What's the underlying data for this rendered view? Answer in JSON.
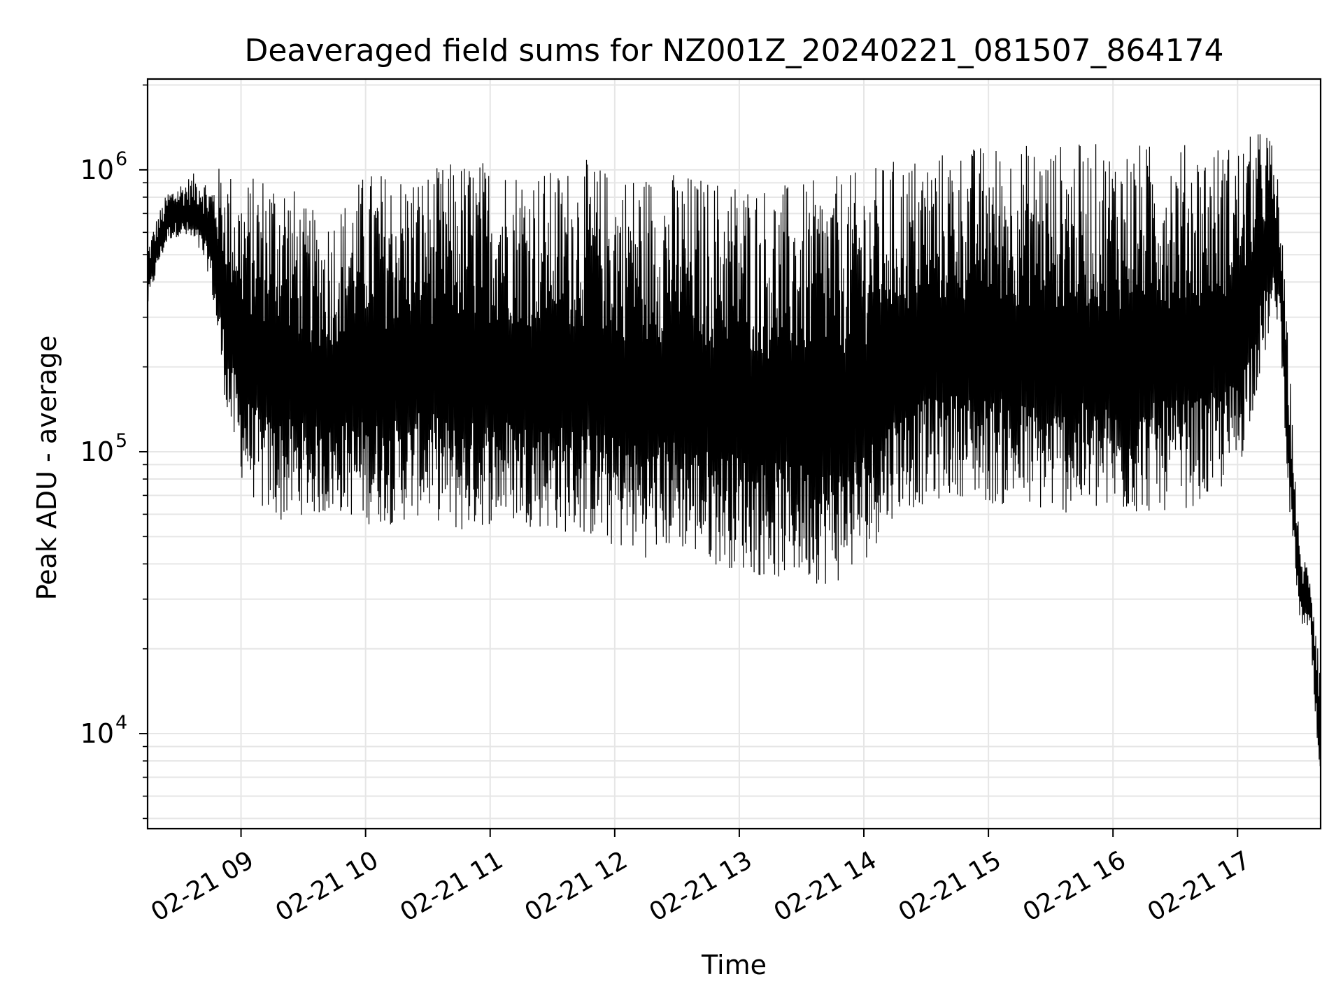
{
  "chart_data": {
    "type": "line",
    "title": "Deaveraged field sums for NZ001Z_20240221_081507_864174",
    "xlabel": "Time",
    "ylabel": "Peak ADU - average",
    "yscale": "log",
    "ylim": [
      4600,
      2100000
    ],
    "xlim": [
      "2024-02-21T08:15",
      "2024-02-21T17:40"
    ],
    "grid": true,
    "line_color": "#000000",
    "x_ticks": [
      {
        "time": "2024-02-21T09:00",
        "label": "02-21 09"
      },
      {
        "time": "2024-02-21T10:00",
        "label": "02-21 10"
      },
      {
        "time": "2024-02-21T11:00",
        "label": "02-21 11"
      },
      {
        "time": "2024-02-21T12:00",
        "label": "02-21 12"
      },
      {
        "time": "2024-02-21T13:00",
        "label": "02-21 13"
      },
      {
        "time": "2024-02-21T14:00",
        "label": "02-21 14"
      },
      {
        "time": "2024-02-21T15:00",
        "label": "02-21 15"
      },
      {
        "time": "2024-02-21T16:00",
        "label": "02-21 16"
      },
      {
        "time": "2024-02-21T17:00",
        "label": "02-21 17"
      }
    ],
    "y_ticks": [
      {
        "value": 10000,
        "base": "10",
        "exp": "4"
      },
      {
        "value": 100000,
        "base": "10",
        "exp": "5"
      },
      {
        "value": 1000000,
        "base": "10",
        "exp": "6"
      }
    ],
    "series": [
      {
        "x": [
          "2024-02-21T08:15",
          "2024-02-21T08:20",
          "2024-02-21T08:25",
          "2024-02-21T08:30",
          "2024-02-21T08:35",
          "2024-02-21T08:40",
          "2024-02-21T08:45",
          "2024-02-21T08:50",
          "2024-02-21T08:55",
          "2024-02-21T09:00",
          "2024-02-21T09:10",
          "2024-02-21T09:20",
          "2024-02-21T09:30",
          "2024-02-21T09:40",
          "2024-02-21T09:50",
          "2024-02-21T10:00",
          "2024-02-21T10:15",
          "2024-02-21T10:30",
          "2024-02-21T10:45",
          "2024-02-21T11:00",
          "2024-02-21T11:15",
          "2024-02-21T11:30",
          "2024-02-21T11:45",
          "2024-02-21T12:00",
          "2024-02-21T12:15",
          "2024-02-21T12:30",
          "2024-02-21T12:45",
          "2024-02-21T13:00",
          "2024-02-21T13:15",
          "2024-02-21T13:30",
          "2024-02-21T13:45",
          "2024-02-21T14:00",
          "2024-02-21T14:15",
          "2024-02-21T14:30",
          "2024-02-21T14:45",
          "2024-02-21T15:00",
          "2024-02-21T15:15",
          "2024-02-21T15:30",
          "2024-02-21T15:45",
          "2024-02-21T16:00",
          "2024-02-21T16:15",
          "2024-02-21T16:30",
          "2024-02-21T16:45",
          "2024-02-21T17:00",
          "2024-02-21T17:15",
          "2024-02-21T17:20",
          "2024-02-21T17:25",
          "2024-02-21T17:30",
          "2024-02-21T17:35",
          "2024-02-21T17:40"
        ],
        "low": [
          320000,
          450000,
          560000,
          580000,
          560000,
          500000,
          420000,
          200000,
          110000,
          80000,
          60000,
          55000,
          60000,
          58000,
          60000,
          55000,
          55000,
          60000,
          50000,
          55000,
          55000,
          52000,
          50000,
          45000,
          42000,
          45000,
          40000,
          38000,
          35000,
          35000,
          33000,
          40000,
          60000,
          65000,
          70000,
          65000,
          62000,
          60000,
          60000,
          58000,
          60000,
          62000,
          65000,
          80000,
          250000,
          300000,
          60000,
          25000,
          22000,
          5000
        ],
        "high": [
          550000,
          700000,
          850000,
          900000,
          950000,
          1000000,
          900000,
          1050000,
          1000000,
          900000,
          1000000,
          1050000,
          750000,
          700000,
          800000,
          1000000,
          1000000,
          1000000,
          1100000,
          1100000,
          1050000,
          1000000,
          1100000,
          1000000,
          1000000,
          1000000,
          950000,
          950000,
          900000,
          900000,
          950000,
          1000000,
          1100000,
          1150000,
          1200000,
          1250000,
          1250000,
          1250000,
          1250000,
          1250000,
          1250000,
          1250000,
          1250000,
          1250000,
          1450000,
          900000,
          200000,
          45000,
          40000,
          20000
        ]
      }
    ]
  }
}
